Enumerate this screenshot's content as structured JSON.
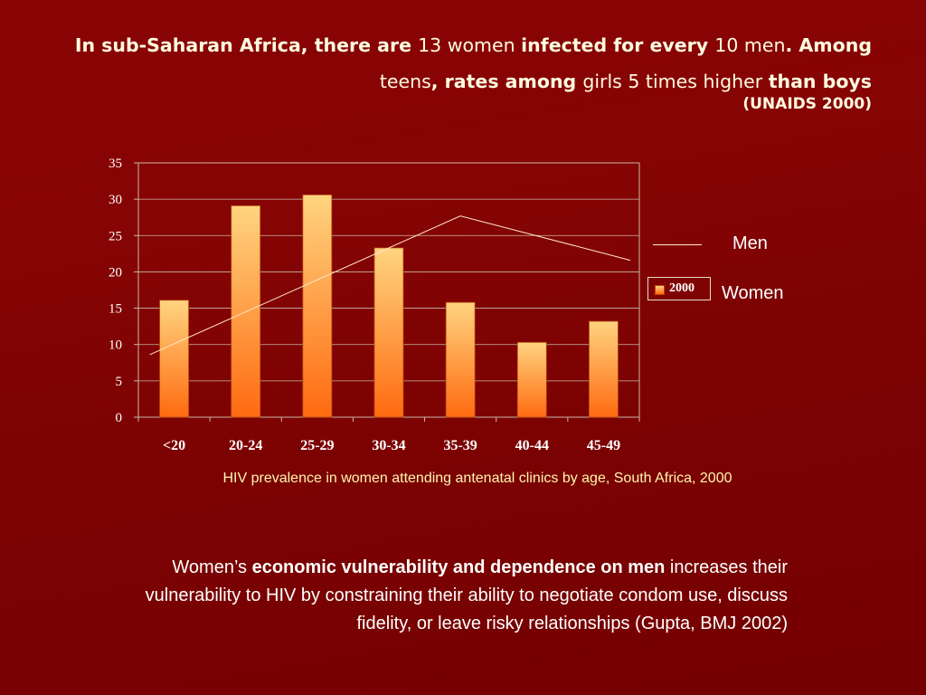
{
  "slide": {
    "title_parts": [
      {
        "text": "In sub-Saharan Africa, there are ",
        "bold": true
      },
      {
        "text": "13 women ",
        "bold": false
      },
      {
        "text": "infected for every ",
        "bold": true
      },
      {
        "text": "10 men",
        "bold": false
      },
      {
        "text": ". Among ",
        "bold": true
      },
      {
        "text": "teens",
        "bold": false
      },
      {
        "text": ", rates among ",
        "bold": true
      },
      {
        "text": "girls 5 times higher ",
        "bold": false
      },
      {
        "text": "than boys",
        "bold": true
      }
    ],
    "source": "(UNAIDS 2000)",
    "caption": "HIV prevalence in women attending antenatal clinics by age, South Africa, 2000",
    "body_parts": [
      {
        "text": "Women’s ",
        "bold": false
      },
      {
        "text": "economic vulnerability and dependence on men",
        "bold": true
      },
      {
        "text": " increases their vulnerability to HIV by constraining their ability to negotiate condom use, discuss fidelity, or leave risky relationships (Gupta, BMJ 2002)",
        "bold": false
      }
    ]
  },
  "legend": {
    "men_label": "Men",
    "year_label": "2000",
    "women_label": "Women"
  },
  "colors": {
    "background": "#7a0000",
    "bar_top": "#ffd480",
    "bar_bottom": "#ff6a10",
    "line": "#ffe8c8",
    "axis": "#c8b8a8",
    "caption": "#fff6b0"
  },
  "chart_data": {
    "type": "bar",
    "categories": [
      "<20",
      "20-24",
      "25-29",
      "30-34",
      "35-39",
      "40-44",
      "45-49"
    ],
    "series": [
      {
        "name": "2000",
        "type": "bar",
        "values": [
          16.1,
          29.1,
          30.6,
          23.3,
          15.8,
          10.3,
          13.2
        ]
      },
      {
        "name": "Men",
        "type": "line",
        "points": [
          {
            "category": "<20",
            "value": 8.6
          },
          {
            "category": "35-39",
            "value": 27.7
          },
          {
            "category": "45-49",
            "value": 21.6
          }
        ]
      }
    ],
    "ylim": [
      0,
      35
    ],
    "yticks": [
      0,
      5,
      10,
      15,
      20,
      25,
      30,
      35
    ],
    "grid": true,
    "legend_position": "right"
  }
}
